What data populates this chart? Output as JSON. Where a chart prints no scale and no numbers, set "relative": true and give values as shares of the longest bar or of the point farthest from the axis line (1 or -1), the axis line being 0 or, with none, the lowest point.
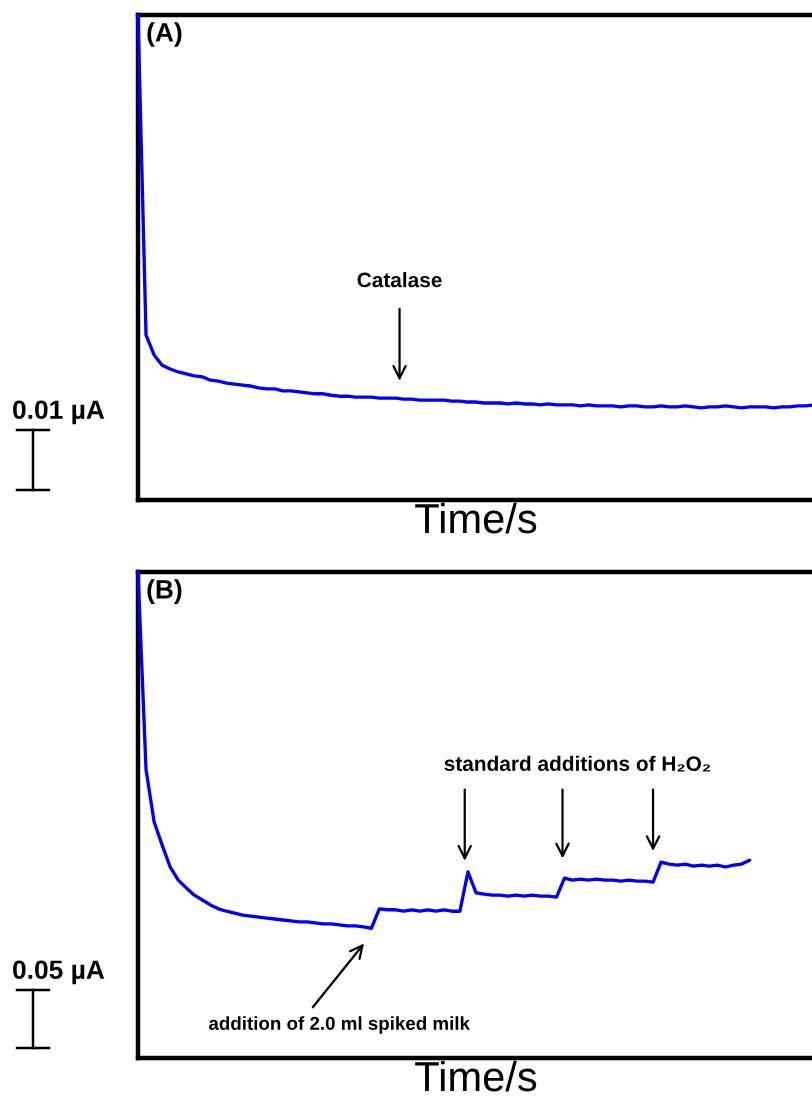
{
  "chart_data": [
    {
      "type": "line",
      "xlabel": "Time/s",
      "relative": true,
      "tick_labels": false,
      "categories": [
        null,
        null,
        null,
        null,
        null,
        null,
        null,
        null,
        null,
        null,
        null,
        null,
        null,
        null,
        null,
        null,
        null,
        null,
        null,
        null,
        null,
        null,
        null,
        null,
        null,
        null,
        null,
        null,
        null,
        null,
        null,
        null,
        null,
        null,
        null,
        null,
        null,
        null,
        null,
        null,
        null,
        null,
        null,
        null,
        null,
        null,
        null,
        null,
        null,
        null,
        null,
        null,
        null,
        null,
        null,
        null,
        null,
        null,
        null,
        null,
        null,
        null,
        null,
        null,
        null,
        null,
        null,
        null,
        null,
        null,
        null,
        null,
        null,
        null,
        null,
        null,
        null,
        null,
        null,
        null,
        null,
        null,
        null,
        null,
        null
      ],
      "series": [
        {
          "color": "#0000ff",
          "values": [
            1.0,
            0.34,
            0.299,
            0.278,
            0.27,
            0.264,
            0.26,
            0.256,
            0.254,
            0.247,
            0.245,
            0.241,
            0.239,
            0.237,
            0.235,
            0.231,
            0.229,
            0.229,
            0.225,
            0.225,
            0.223,
            0.221,
            0.219,
            0.219,
            0.216,
            0.214,
            0.214,
            0.212,
            0.212,
            0.212,
            0.21,
            0.21,
            0.21,
            0.208,
            0.208,
            0.206,
            0.206,
            0.206,
            0.206,
            0.204,
            0.204,
            0.202,
            0.202,
            0.2,
            0.2,
            0.2,
            0.198,
            0.2,
            0.198,
            0.198,
            0.196,
            0.198,
            0.196,
            0.196,
            0.196,
            0.194,
            0.196,
            0.194,
            0.194,
            0.194,
            0.192,
            0.194,
            0.194,
            0.192,
            0.192,
            0.194,
            0.192,
            0.192,
            0.194,
            0.192,
            0.19,
            0.192,
            0.192,
            0.194,
            0.192,
            0.19,
            0.192,
            0.192,
            0.192,
            0.19,
            0.192,
            0.192,
            0.194,
            0.194,
            0.196
          ]
        }
      ],
      "annotations": [
        "(A)",
        "Catalase",
        "0.01 µA"
      ]
    },
    {
      "type": "line",
      "xlabel": "Time/s",
      "relative": true,
      "tick_labels": false,
      "categories": [
        null,
        null,
        null,
        null,
        null,
        null,
        null,
        null,
        null,
        null,
        null,
        null,
        null,
        null,
        null,
        null,
        null,
        null,
        null,
        null,
        null,
        null,
        null,
        null,
        null,
        null,
        null,
        null,
        null,
        null,
        null,
        null,
        null,
        null,
        null,
        null,
        null,
        null,
        null,
        null,
        null,
        null,
        null,
        null,
        null,
        null,
        null,
        null,
        null,
        null,
        null,
        null,
        null,
        null,
        null,
        null,
        null,
        null,
        null,
        null,
        null,
        null,
        null,
        null,
        null,
        null,
        null,
        null,
        null,
        null,
        null,
        null,
        null,
        null,
        null,
        null,
        null,
        null,
        null,
        null,
        null,
        null,
        null,
        null,
        null
      ],
      "series": [
        {
          "color": "#0000ff",
          "values": [
            1.0,
            0.593,
            0.486,
            0.438,
            0.393,
            0.366,
            0.35,
            0.335,
            0.325,
            0.315,
            0.307,
            0.302,
            0.298,
            0.294,
            0.292,
            0.29,
            0.288,
            0.286,
            0.284,
            0.282,
            0.28,
            0.28,
            0.278,
            0.276,
            0.276,
            0.274,
            0.272,
            0.272,
            0.27,
            0.267,
            0.307,
            0.305,
            0.305,
            0.302,
            0.305,
            0.302,
            0.305,
            0.302,
            0.305,
            0.302,
            0.302,
            0.383,
            0.34,
            0.337,
            0.335,
            0.335,
            0.333,
            0.335,
            0.333,
            0.335,
            0.333,
            0.333,
            0.331,
            0.37,
            0.366,
            0.368,
            0.366,
            0.368,
            0.366,
            0.366,
            0.364,
            0.366,
            0.364,
            0.364,
            0.362,
            0.403,
            0.399,
            0.397,
            0.399,
            0.395,
            0.397,
            0.395,
            0.397,
            0.393,
            0.397,
            0.399,
            0.407,
            null,
            null,
            null,
            null,
            null,
            null,
            null,
            null
          ]
        }
      ],
      "annotations": [
        "(B)",
        "standard additions of H₂O₂",
        "addition of 2.0 ml spiked milk",
        "0.05 µA"
      ]
    }
  ]
}
